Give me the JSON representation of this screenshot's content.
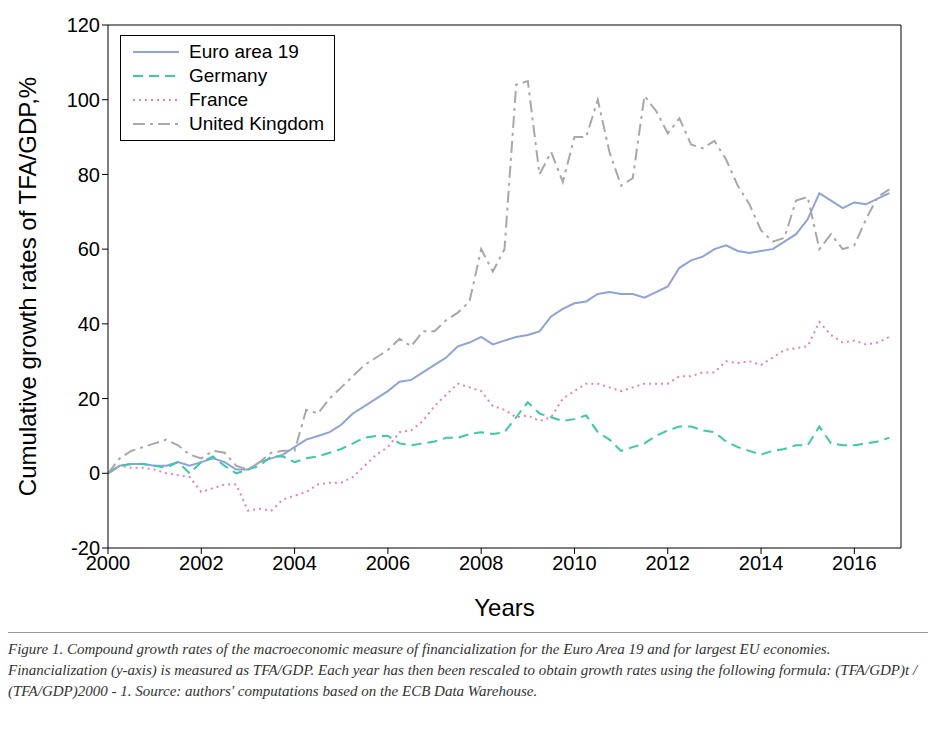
{
  "chart_data": {
    "type": "line",
    "x_label": "Years",
    "y_label": "Cumulative growth rates of TFA/GDP,%",
    "caption": "Figure 1. Compound growth rates of the macroeconomic measure of financialization for the Euro Area 19 and for largest EU economies. Financialization (y-axis) is measured as TFA/GDP. Each year has then been rescaled to obtain growth rates using the following formula: (TFA/GDP)t / (TFA/GDP)2000 - 1. Source: authors' computations based on the ECB Data Warehouse.",
    "legend": "upper left",
    "grid": false,
    "xlim": [
      2000,
      2017
    ],
    "xticks": [
      2000,
      2002,
      2004,
      2006,
      2008,
      2010,
      2012,
      2014,
      2016
    ],
    "ylim": [
      -20,
      120
    ],
    "yticks": [
      -20,
      0,
      20,
      40,
      60,
      80,
      100,
      120
    ],
    "x": [
      2000,
      2000.25,
      2000.5,
      2000.75,
      2001,
      2001.25,
      2001.5,
      2001.75,
      2002,
      2002.25,
      2002.5,
      2002.75,
      2003,
      2003.25,
      2003.5,
      2003.75,
      2004,
      2004.25,
      2004.5,
      2004.75,
      2005,
      2005.25,
      2005.5,
      2005.75,
      2006,
      2006.25,
      2006.5,
      2006.75,
      2007,
      2007.25,
      2007.5,
      2007.75,
      2008,
      2008.25,
      2008.5,
      2008.75,
      2009,
      2009.25,
      2009.5,
      2009.75,
      2010,
      2010.25,
      2010.5,
      2010.75,
      2011,
      2011.25,
      2011.5,
      2011.75,
      2012,
      2012.25,
      2012.5,
      2012.75,
      2013,
      2013.25,
      2013.5,
      2013.75,
      2014,
      2014.25,
      2014.5,
      2014.75,
      2015,
      2015.25,
      2015.5,
      2015.75,
      2016,
      2016.25,
      2016.5,
      2016.75
    ],
    "series": [
      {
        "name": "Euro area 19",
        "color": "#8fa3d9",
        "line_style": "solid",
        "values": [
          0,
          2,
          2.5,
          2.5,
          2,
          2,
          3,
          2,
          3,
          4,
          3,
          1,
          1,
          3,
          4,
          5,
          7,
          9,
          10,
          11,
          13,
          16,
          18,
          20,
          22,
          24.5,
          25,
          27,
          29,
          31,
          34,
          35,
          36.5,
          34.5,
          35.5,
          36.5,
          37,
          38,
          42,
          44,
          45.5,
          46,
          48,
          48.5,
          48,
          48,
          47,
          48.5,
          50,
          55,
          57,
          58,
          60,
          61,
          59.5,
          59,
          59.5,
          60,
          62,
          64,
          68,
          75,
          73,
          71,
          72.5,
          72,
          73.5,
          75
        ]
      },
      {
        "name": "Germany",
        "color": "#3cc9a8",
        "line_style": "dashed",
        "values": [
          0,
          2,
          2.5,
          2.5,
          2,
          1.5,
          3,
          0,
          3,
          4.5,
          2,
          0,
          1,
          2,
          4.5,
          4.5,
          3,
          4,
          4.5,
          5.5,
          6.5,
          8,
          9.5,
          10,
          10,
          8,
          7.5,
          8,
          8.5,
          9.5,
          9.5,
          10.5,
          11,
          10.5,
          11,
          15,
          19,
          16,
          15,
          14,
          14.5,
          15.5,
          11,
          9,
          6,
          7,
          8,
          10,
          11.5,
          12.5,
          12.5,
          11.5,
          11,
          8.5,
          7,
          6,
          5,
          6,
          6.5,
          7.5,
          7.5,
          12.5,
          8,
          7.5,
          7.5,
          8,
          8.5,
          9.5
        ]
      },
      {
        "name": "France",
        "color": "#e87fc0",
        "line_style": "dotted",
        "values": [
          0,
          2,
          1.5,
          1.5,
          1,
          0,
          -0.5,
          -1,
          -5,
          -4,
          -3,
          -3,
          -10,
          -9.5,
          -10,
          -7,
          -6,
          -5,
          -3,
          -2.5,
          -2.5,
          -1,
          2,
          5,
          7,
          11,
          11.5,
          14,
          18,
          21,
          24,
          23,
          22,
          18,
          17,
          15,
          15.5,
          14,
          15,
          20,
          22,
          24,
          24,
          23,
          22,
          23,
          24,
          24,
          24,
          26,
          26,
          27,
          27,
          30,
          29.5,
          30,
          29,
          31,
          33,
          33.5,
          34,
          40.5,
          37,
          35,
          35.5,
          34.5,
          35,
          36.5
        ]
      },
      {
        "name": "United Kingdom",
        "color": "#a8a8a8",
        "line_style": "dashdot",
        "values": [
          0,
          4,
          6,
          7,
          8,
          9,
          7.5,
          5,
          4,
          6,
          5.5,
          2,
          1,
          3,
          5.5,
          6,
          6,
          17,
          16,
          20,
          23,
          26,
          29,
          31,
          33,
          36,
          34,
          38,
          38,
          41,
          43,
          46,
          60,
          54,
          60,
          104,
          105,
          80,
          86,
          78,
          90,
          90,
          100,
          86,
          77,
          79,
          101,
          97,
          91,
          95,
          88,
          87,
          89,
          84,
          77,
          72,
          65,
          62,
          63,
          73,
          74,
          60,
          64,
          60,
          61,
          68,
          74,
          76
        ]
      }
    ]
  }
}
